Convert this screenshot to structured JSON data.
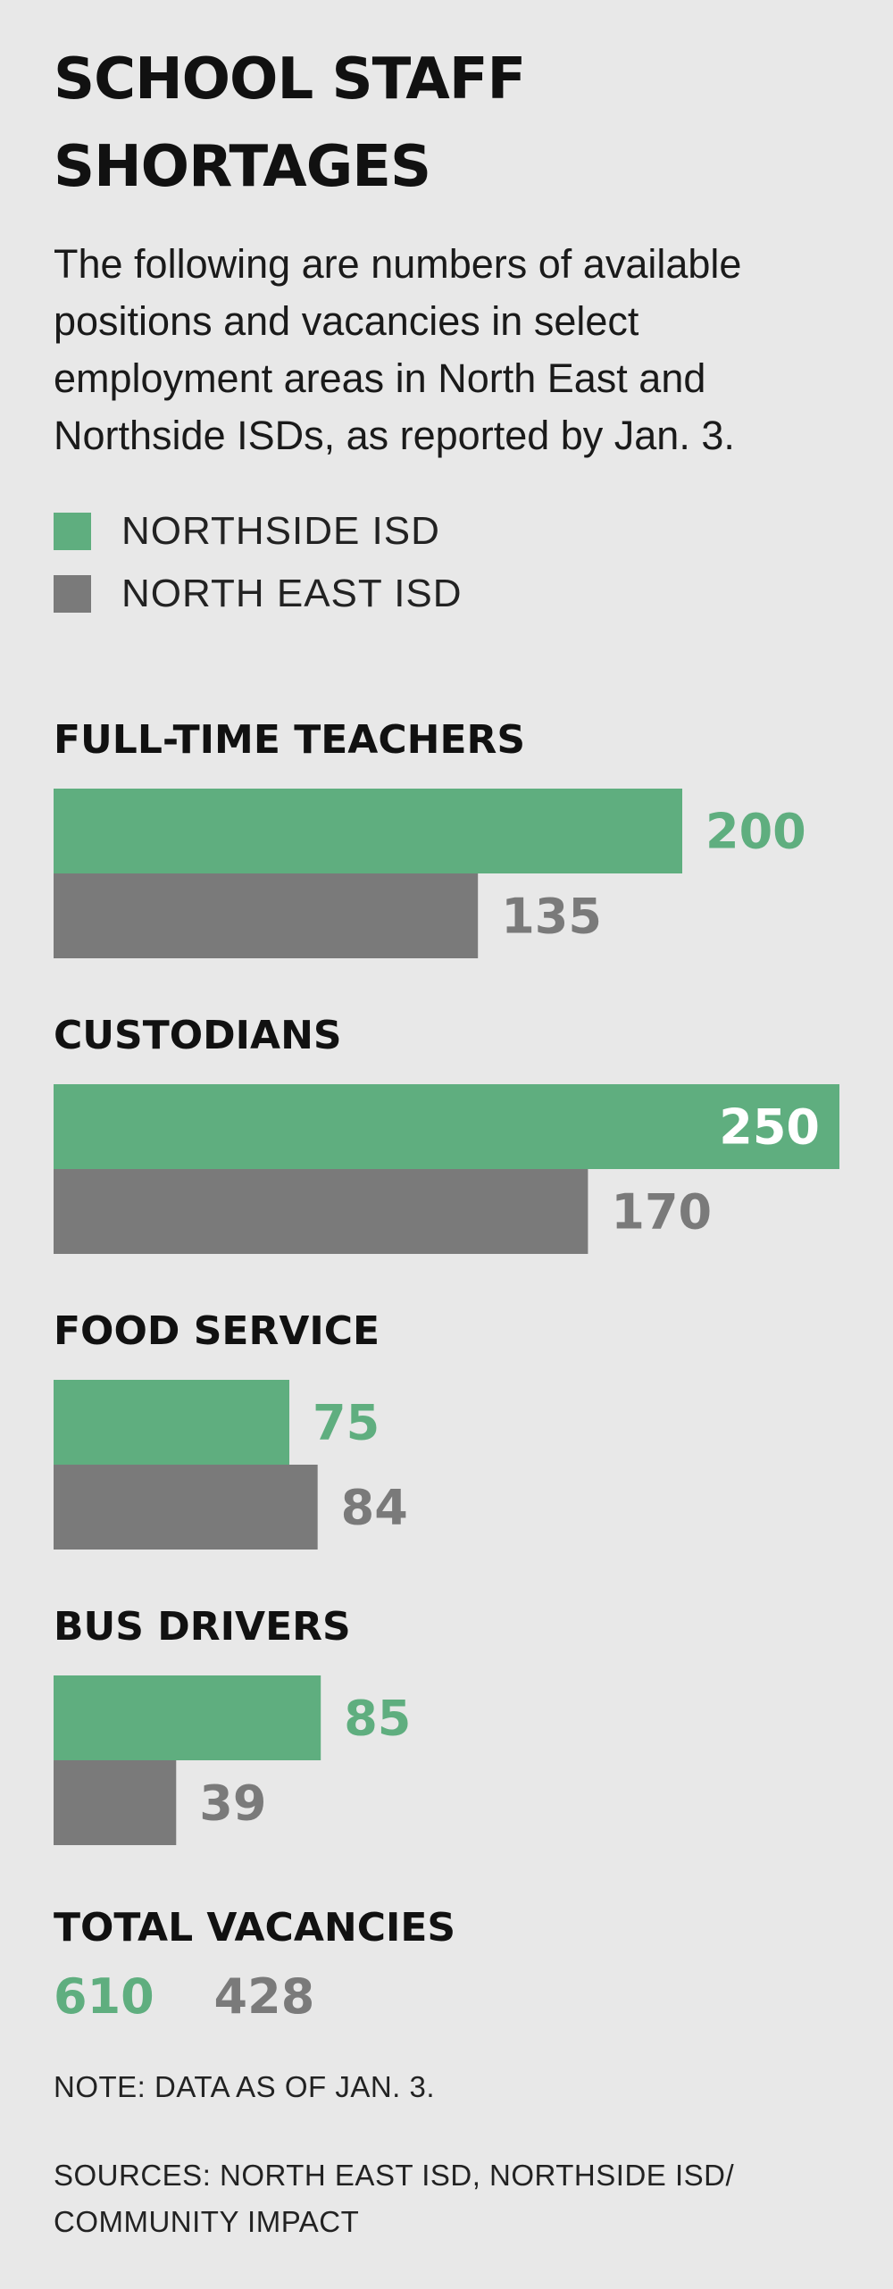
{
  "header": {
    "title_line1": "SCHOOL STAFF",
    "title_line2": "SHORTAGES",
    "subtitle": "The following are numbers of available positions and vacancies in select employment areas in North East and Northside ISDs, as reported by Jan. 3."
  },
  "legend": [
    {
      "label": "NORTHSIDE ISD",
      "color": "#5fae7f"
    },
    {
      "label": "NORTH EAST ISD",
      "color": "#7a7a7a"
    }
  ],
  "chart_data": {
    "type": "bar",
    "orientation": "horizontal",
    "title": "SCHOOL STAFF SHORTAGES",
    "categories": [
      "FULL-TIME TEACHERS",
      "CUSTODIANS",
      "FOOD SERVICE",
      "BUS DRIVERS"
    ],
    "series": [
      {
        "name": "NORTHSIDE ISD",
        "color": "#5fae7f",
        "values": [
          200,
          250,
          75,
          85
        ]
      },
      {
        "name": "NORTH EAST ISD",
        "color": "#7a7a7a",
        "values": [
          135,
          170,
          84,
          39
        ]
      }
    ],
    "xlim": [
      0,
      250
    ],
    "grid": false,
    "legend_position": "top-left",
    "data_labels": true
  },
  "totals": {
    "label": "TOTAL VACANCIES",
    "northside": "610",
    "north_east": "428"
  },
  "footer": {
    "note": "NOTE: DATA AS OF JAN. 3.",
    "sources": "SOURCES: NORTH EAST ISD, NORTHSIDE ISD/ COMMUNITY IMPACT"
  },
  "colors": {
    "northside_label": "#5fae7f",
    "north_east_label": "#7a7a7a",
    "inside_label": "#ffffff"
  }
}
